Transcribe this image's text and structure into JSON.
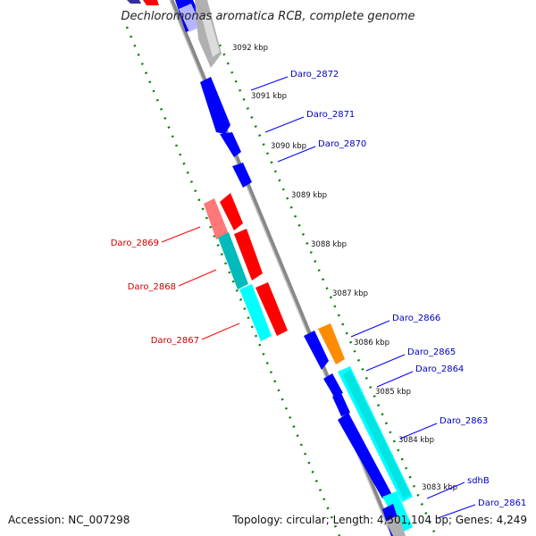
{
  "title": "Dechloromonas aromatica RCB, complete genome",
  "accession": "Accession: NC_007298",
  "topology": "Topology: circular; Length: 4,501,104 bp; Genes: 4,249",
  "colors": {
    "forward": "#0000ff",
    "reverse": "#ff0000",
    "rna_forward": "#00ffff",
    "rna_reverse": "#00bbbb",
    "other": "#ff8c00",
    "pseudo": "#b0b0b0",
    "backbone": "#888888",
    "tick": "#008000"
  },
  "kbp_labels": [
    "3092 kbp",
    "3091 kbp",
    "3090 kbp",
    "3089 kbp",
    "3088 kbp",
    "3087 kbp",
    "3086 kbp",
    "3085 kbp",
    "3084 kbp",
    "3083 kbp"
  ],
  "genes": [
    {
      "label": "Daro_2872",
      "strand": "forward"
    },
    {
      "label": "Daro_2871",
      "strand": "forward"
    },
    {
      "label": "Daro_2870",
      "strand": "forward"
    },
    {
      "label": "Daro_2869",
      "strand": "reverse"
    },
    {
      "label": "Daro_2868",
      "strand": "reverse"
    },
    {
      "label": "Daro_2867",
      "strand": "reverse"
    },
    {
      "label": "Daro_2866",
      "strand": "forward"
    },
    {
      "label": "Daro_2865",
      "strand": "forward"
    },
    {
      "label": "Daro_2864",
      "strand": "forward"
    },
    {
      "label": "Daro_2863",
      "strand": "forward"
    },
    {
      "label": "sdhB",
      "strand": "forward"
    },
    {
      "label": "Daro_2861",
      "strand": "forward"
    }
  ]
}
